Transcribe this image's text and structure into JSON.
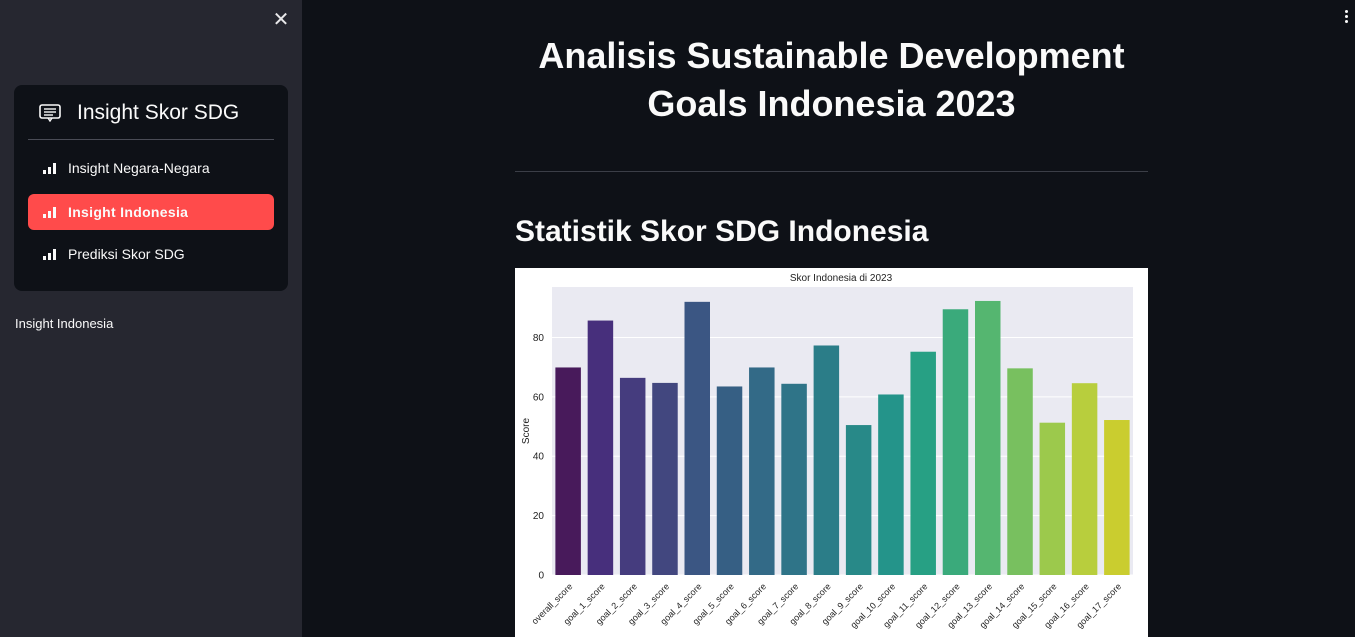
{
  "sidebar": {
    "menu_title": "Insight Skor SDG",
    "items": [
      {
        "label": "Insight Negara-Negara",
        "active": false
      },
      {
        "label": "Insight Indonesia",
        "active": true
      },
      {
        "label": "Prediksi Skor SDG",
        "active": false
      }
    ],
    "caption": "Insight Indonesia",
    "active_color": "#ff4b4b",
    "icons": {
      "close": "close-icon",
      "menu": "menu-card-icon",
      "item": "bar-chart-icon"
    }
  },
  "main": {
    "title": "Analisis Sustainable Development Goals Indonesia 2023",
    "section_title": "Statistik Skor SDG Indonesia"
  },
  "chart_data": {
    "type": "bar",
    "title": "Skor Indonesia di 2023",
    "xlabel": "",
    "ylabel": "Score",
    "ylim": [
      0,
      97
    ],
    "yticks": [
      0,
      20,
      40,
      60,
      80
    ],
    "grid": true,
    "categories": [
      "overall_score",
      "goal_1_score",
      "goal_2_score",
      "goal_3_score",
      "goal_4_score",
      "goal_5_score",
      "goal_6_score",
      "goal_7_score",
      "goal_8_score",
      "goal_9_score",
      "goal_10_score",
      "goal_11_score",
      "goal_12_score",
      "goal_13_score",
      "goal_14_score",
      "goal_15_score",
      "goal_16_score",
      "goal_17_score"
    ],
    "values": [
      69.9,
      85.7,
      66.4,
      64.7,
      92.0,
      63.5,
      69.9,
      64.4,
      77.3,
      50.5,
      60.8,
      75.2,
      89.5,
      92.3,
      69.6,
      51.3,
      64.6,
      52.2
    ],
    "colors": [
      "#481a5b",
      "#472f7c",
      "#453c7e",
      "#42477f",
      "#3b5683",
      "#365f84",
      "#336a87",
      "#2f7488",
      "#2b7d88",
      "#288988",
      "#24948a",
      "#27a084",
      "#3aaa7b",
      "#55b670",
      "#78c05f",
      "#9cc94c",
      "#b8ce3d",
      "#cacd2f"
    ],
    "plot_background": "#eaeaf2"
  }
}
